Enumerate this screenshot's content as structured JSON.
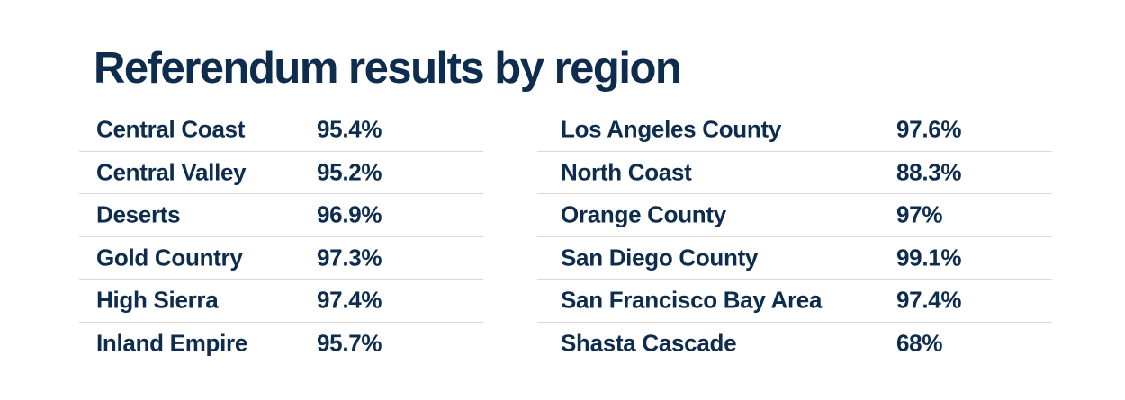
{
  "title": "Referendum results by region",
  "colors": {
    "text_navy": "#0d2c4e",
    "separator": "#d9d9d9",
    "background": "#ffffff"
  },
  "table": {
    "columns": [
      {
        "rows": [
          {
            "region": "Central Coast",
            "value": "95.4%"
          },
          {
            "region": "Central Valley",
            "value": "95.2%"
          },
          {
            "region": "Deserts",
            "value": "96.9%"
          },
          {
            "region": "Gold Country",
            "value": "97.3%"
          },
          {
            "region": "High Sierra",
            "value": "97.4%"
          },
          {
            "region": "Inland Empire",
            "value": "95.7%"
          }
        ]
      },
      {
        "rows": [
          {
            "region": "Los Angeles County",
            "value": "97.6%"
          },
          {
            "region": "North Coast",
            "value": "88.3%"
          },
          {
            "region": "Orange County",
            "value": "97%"
          },
          {
            "region": "San Diego County",
            "value": "99.1%"
          },
          {
            "region": "San Francisco Bay Area",
            "value": "97.4%"
          },
          {
            "region": "Shasta Cascade",
            "value": "68%"
          }
        ]
      }
    ]
  },
  "chart_data": {
    "type": "table",
    "title": "Referendum results by region",
    "categories": [
      "Central Coast",
      "Central Valley",
      "Deserts",
      "Gold Country",
      "High Sierra",
      "Inland Empire",
      "Los Angeles County",
      "North Coast",
      "Orange County",
      "San Diego County",
      "San Francisco Bay Area",
      "Shasta Cascade"
    ],
    "values": [
      95.4,
      95.2,
      96.9,
      97.3,
      97.4,
      95.7,
      97.6,
      88.3,
      97,
      99.1,
      97.4,
      68
    ],
    "unit": "%",
    "layout": "two-column table, light gray row separators, dark navy bold text on white"
  }
}
